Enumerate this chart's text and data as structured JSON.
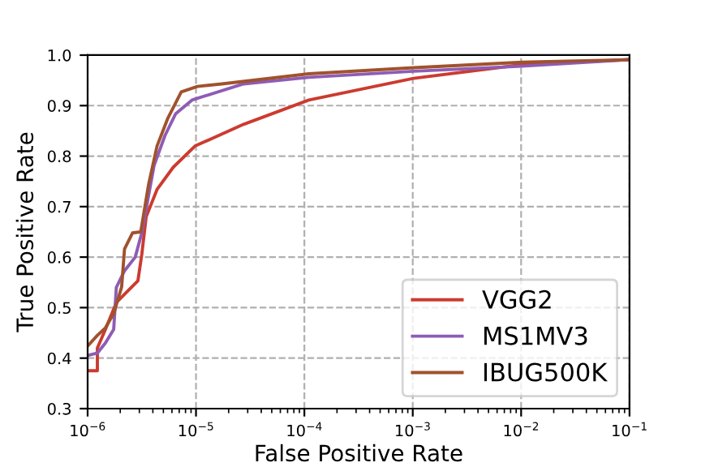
{
  "chart_data": {
    "type": "line",
    "xlabel": "False Positive Rate",
    "ylabel": "True Positive Rate",
    "log": "x",
    "grid": true,
    "legend": "bottom right",
    "line_style": "solid",
    "xlim": [
      1e-06,
      0.1
    ],
    "xticks": [
      {
        "value": 1e-06,
        "label": "10$^{−6}$"
      },
      {
        "value": 1e-05,
        "label": "10$^{−5}$"
      },
      {
        "value": 0.0001,
        "label": "10$^{−4}$"
      },
      {
        "value": 0.001,
        "label": "10$^{−3}$"
      },
      {
        "value": 0.01,
        "label": "10$^{−2}$"
      },
      {
        "value": 0.1,
        "label": "10$^{−1}$"
      }
    ],
    "ylim": [
      0.3,
      1.0
    ],
    "yticks": [
      0.3,
      0.4,
      0.5,
      0.6,
      0.7,
      0.8,
      0.9,
      {
        "value": 1.0,
        "label": "1.0"
      }
    ],
    "series": [
      {
        "name": "VGG2",
        "color": "#cc3b30",
        "x": [
          1e-06,
          1.23e-06,
          1.23e-06,
          1.46e-06,
          1.84e-06,
          2.45e-06,
          2.91e-06,
          3.16e-06,
          3.47e-06,
          4.37e-06,
          6.17e-06,
          9.8e-06,
          2.75e-05,
          0.00011,
          0.00102,
          0.0102,
          0.1
        ],
        "values": [
          0.375,
          0.375,
          0.42,
          0.457,
          0.51,
          0.537,
          0.553,
          0.605,
          0.68,
          0.734,
          0.778,
          0.82,
          0.863,
          0.911,
          0.954,
          0.981,
          0.991
        ]
      },
      {
        "name": "MS1MV3",
        "color": "#8e5cb5",
        "x": [
          1e-06,
          1.23e-06,
          1.46e-06,
          1.74e-06,
          1.84e-06,
          2.19e-06,
          2.75e-06,
          3.16e-06,
          3.66e-06,
          4.11e-06,
          5.18e-06,
          6.5e-06,
          9.18e-06,
          2.75e-05,
          0.00011,
          0.00102,
          0.0102,
          0.1
        ],
        "values": [
          0.405,
          0.41,
          0.43,
          0.457,
          0.54,
          0.573,
          0.6,
          0.648,
          0.723,
          0.782,
          0.841,
          0.884,
          0.911,
          0.943,
          0.956,
          0.968,
          0.978,
          0.991
        ]
      },
      {
        "name": "IBUG500K",
        "color": "#a0522d",
        "x": [
          1e-06,
          1.23e-06,
          1.46e-06,
          1.74e-06,
          2.06e-06,
          2.19e-06,
          2.6e-06,
          3.09e-06,
          3.66e-06,
          4.37e-06,
          5.47e-06,
          7.31e-06,
          1.03e-05,
          1.73e-05,
          0.00011,
          0.00102,
          0.0102,
          0.1
        ],
        "values": [
          0.424,
          0.445,
          0.46,
          0.488,
          0.541,
          0.616,
          0.648,
          0.65,
          0.745,
          0.82,
          0.874,
          0.927,
          0.938,
          0.943,
          0.963,
          0.975,
          0.986,
          0.991
        ]
      }
    ]
  }
}
